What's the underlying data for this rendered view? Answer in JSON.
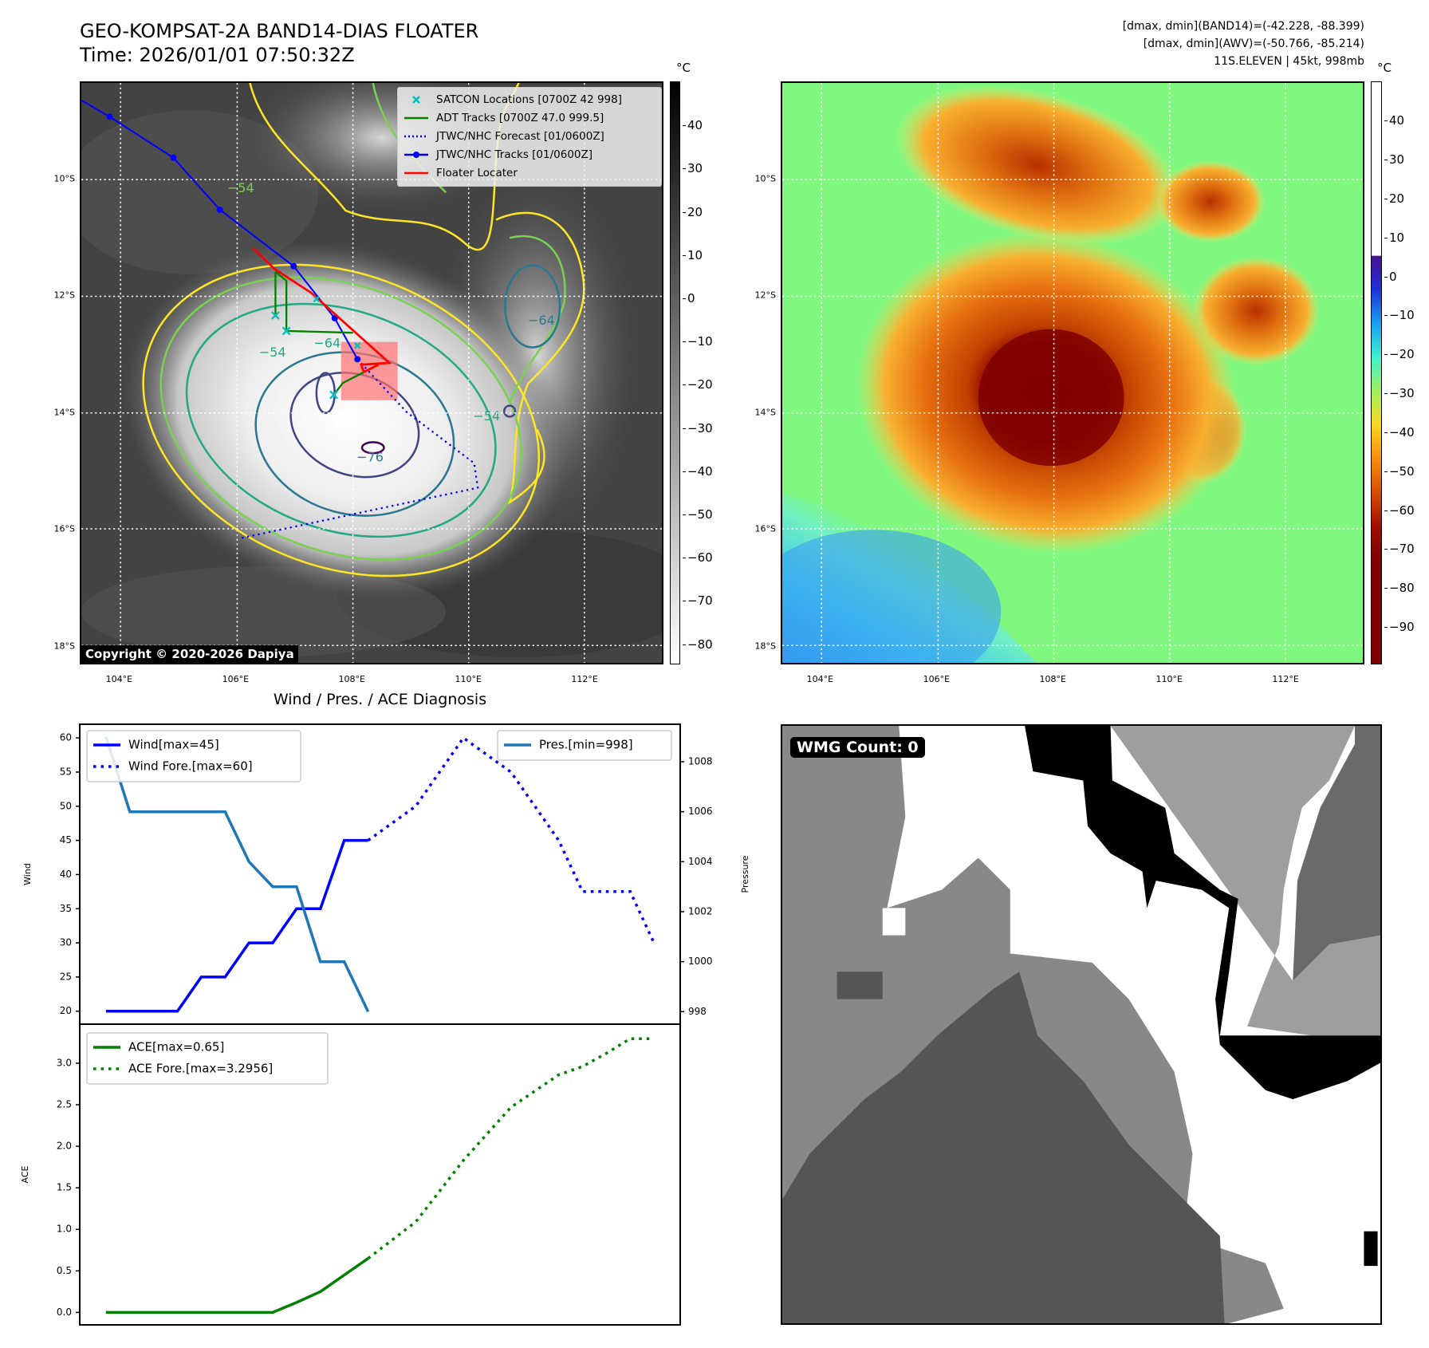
{
  "header": {
    "title": "GEO-KOMPSAT-2A BAND14-DIAS FLOATER",
    "time": "Time: 2026/01/01 07:50:32Z",
    "stats": [
      "[dmax, dmin](BAND14)=(-42.228, -88.399)",
      "[dmax, dmin](AWV)=(-50.766, -85.214)",
      "11S.ELEVEN | 45kt, 998mb"
    ]
  },
  "map_ir": {
    "colorbar_unit": "°C",
    "colorbar_ticks": [
      "40",
      "30",
      "20",
      "10",
      "0",
      "−10",
      "−20",
      "−30",
      "−40",
      "−50",
      "−60",
      "−70",
      "−80"
    ],
    "colorbar_values": [
      40,
      30,
      20,
      10,
      0,
      -10,
      -20,
      -30,
      -40,
      -50,
      -60,
      -70,
      -80
    ],
    "colorbar_range": [
      50.2,
      -84.7
    ],
    "legend": [
      "SATCON Locations [0700Z 42 998]",
      "ADT Tracks [0700Z 47.0 999.5]",
      "JTWC/NHC Forecast [01/0600Z]",
      "JTWC/NHC Tracks [01/0600Z]",
      "Floater Locater"
    ],
    "contour_labels": [
      "−54",
      "−64",
      "−76",
      "−54",
      "−64",
      "−54"
    ],
    "copyright": "Copyright © 2020-2026 Dapiya",
    "colors": {
      "track": "#0000ff",
      "adt": "#008000",
      "floater": "#ff0000",
      "satcon": "#00bfbf"
    }
  },
  "map_color": {
    "colorbar_unit": "°C",
    "colorbar_ticks": [
      "40",
      "30",
      "20",
      "10",
      "0",
      "−10",
      "−20",
      "−30",
      "−40",
      "−50",
      "−60",
      "−70",
      "−80",
      "−90"
    ],
    "colorbar_values": [
      40,
      30,
      20,
      10,
      0,
      -10,
      -20,
      -30,
      -40,
      -50,
      -60,
      -70,
      -80,
      -90
    ],
    "colorbar_range": [
      50.1,
      -99.6
    ]
  },
  "geo": {
    "lat_ticks": [
      {
        "label": "10°S",
        "value": -10
      },
      {
        "label": "12°S",
        "value": -12
      },
      {
        "label": "14°S",
        "value": -14
      },
      {
        "label": "16°S",
        "value": -16
      },
      {
        "label": "18°S",
        "value": -18
      }
    ],
    "lon_ticks": [
      {
        "label": "104°E",
        "value": 104
      },
      {
        "label": "106°E",
        "value": 106
      },
      {
        "label": "108°E",
        "value": 108
      },
      {
        "label": "110°E",
        "value": 110
      },
      {
        "label": "112°E",
        "value": 112
      }
    ]
  },
  "diagnosis": {
    "title": "Wind / Pres. / ACE Diagnosis"
  },
  "chart_data": [
    {
      "type": "line",
      "title": "Wind / Pres. / ACE Diagnosis",
      "ylabel": "Wind",
      "y2label": "Pressure",
      "xlim": [
        -1.1,
        24.1
      ],
      "ylim": [
        18.1,
        62.0
      ],
      "y2lim": [
        997.5,
        1009.5
      ],
      "yticks": [
        20,
        25,
        30,
        35,
        40,
        45,
        50,
        55,
        60
      ],
      "y2ticks": [
        998,
        1000,
        1002,
        1004,
        1006,
        1008
      ],
      "series": [
        {
          "name": "Wind[max=45]",
          "axis": "left",
          "style": "solid",
          "color": "#0000ff",
          "x": [
            0,
            1,
            2,
            3,
            4,
            5,
            6,
            7,
            8,
            9,
            10,
            11
          ],
          "values": [
            20,
            20,
            20,
            20,
            25,
            25,
            30,
            30,
            35,
            35,
            45,
            45
          ]
        },
        {
          "name": "Wind Fore.[max=60]",
          "axis": "left",
          "style": "dotted",
          "color": "#0000ff",
          "x": [
            11,
            13,
            15,
            17,
            19,
            20,
            21,
            22,
            23
          ],
          "values": [
            45,
            50,
            60,
            55,
            45,
            37.5,
            37.5,
            37.5,
            30
          ]
        },
        {
          "name": "Pres.[min=998]",
          "axis": "right",
          "style": "solid",
          "color": "#1f77b4",
          "x": [
            0,
            1,
            2,
            3,
            4,
            5,
            6,
            7,
            8,
            9,
            10,
            11
          ],
          "values": [
            1009,
            1006,
            1006,
            1006,
            1006,
            1006,
            1004,
            1003,
            1003,
            1000,
            1000,
            998
          ]
        }
      ],
      "legend_placement": [
        "upper-left",
        "upper-right"
      ]
    },
    {
      "type": "line",
      "ylabel": "ACE",
      "xlim": [
        -1.1,
        24.1
      ],
      "ylim": [
        -0.15,
        3.47
      ],
      "yticks": [
        0.0,
        0.5,
        1.0,
        1.5,
        2.0,
        2.5,
        3.0
      ],
      "ytick_labels": [
        "0.0",
        "0.5",
        "1.0",
        "1.5",
        "2.0",
        "2.5",
        "3.0"
      ],
      "series": [
        {
          "name": "ACE[max=0.65]",
          "style": "solid",
          "color": "#008000",
          "x": [
            0,
            1,
            2,
            3,
            4,
            5,
            6,
            7,
            8,
            9,
            10,
            11
          ],
          "values": [
            0,
            0,
            0,
            0,
            0,
            0,
            0,
            0,
            0.12,
            0.25,
            0.45,
            0.65
          ]
        },
        {
          "name": "ACE Fore.[max=3.2956]",
          "style": "dotted",
          "color": "#008000",
          "x": [
            11,
            13,
            15,
            17,
            19,
            20,
            21,
            22,
            23
          ],
          "values": [
            0.65,
            1.09,
            1.83,
            2.47,
            2.86,
            2.96,
            3.12,
            3.2956,
            3.2956
          ]
        }
      ],
      "legend_placement": "upper-left"
    }
  ],
  "wmg": {
    "label": "WMG Count: 0"
  }
}
